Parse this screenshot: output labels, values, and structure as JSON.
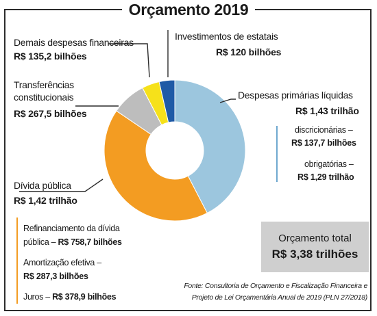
{
  "title": "Orçamento 2019",
  "chart_data": {
    "type": "pie",
    "style": "donut",
    "slices": [
      {
        "label": "Despesas primárias líquidas",
        "value": 1430,
        "value_text": "R$ 1,43 trilhão",
        "color": "#9cc6de"
      },
      {
        "label": "Dívida pública",
        "value": 1420,
        "value_text": "R$ 1,42 trilhão",
        "color": "#f39c22"
      },
      {
        "label": "Transferências constitucionais",
        "value": 267.5,
        "value_text": "R$ 267,5 bilhões",
        "color": "#bdbdbd"
      },
      {
        "label": "Demais despesas financeiras",
        "value": 135.2,
        "value_text": "R$ 135,2 bilhões",
        "color": "#f6e11a"
      },
      {
        "label": "Investimentos de estatais",
        "value": 120,
        "value_text": "R$ 120 bilhões",
        "color": "#1f5aa6"
      }
    ]
  },
  "labels": {
    "demais": {
      "name": "Demais despesas financeiras",
      "value": "R$ 135,2 bilhões"
    },
    "investimentos": {
      "name": "Investimentos de estatais",
      "value": "R$ 120 bilhões"
    },
    "transferencias": {
      "name_line1": "Transferências",
      "name_line2": "constitucionais",
      "value": "R$ 267,5 bilhões"
    },
    "despesas": {
      "name": "Despesas primárias líquidas",
      "value": "R$ 1,43 trilhão"
    },
    "divida": {
      "name": "Dívida pública",
      "value": "R$ 1,42 trilhão"
    }
  },
  "despesas_breakdown": {
    "discricionarias_label": "discricionárias –",
    "discricionarias_value": "R$ 137,7 bilhões",
    "obrigatorias_label": "obrigatórias –",
    "obrigatorias_value": "R$ 1,29 trilhão"
  },
  "divida_breakdown": {
    "refin_line1": "Refinanciamento da dívida",
    "refin_line2_prefix": "pública – ",
    "refin_value": "R$ 758,7 bilhões",
    "amort_label": "Amortização efetiva –",
    "amort_value": "R$ 287,3 bilhões",
    "juros_prefix": "Juros – ",
    "juros_value": "R$ 378,9 bilhões"
  },
  "total": {
    "label": "Orçamento total",
    "value": "R$ 3,38 trilhões"
  },
  "source": {
    "line1": "Fonte: Consultoria de Orçamento e Fiscalização Financeira e",
    "line2": "Projeto de Lei Orçamentária Anual de 2019 (PLN 27/2018)"
  },
  "colors": {
    "frame": "#2b2b2b",
    "leader": "#2b2b2b",
    "despesas_accent": "#6fa8cf",
    "divida_accent": "#f39c22",
    "total_box": "#cfcfcf"
  }
}
